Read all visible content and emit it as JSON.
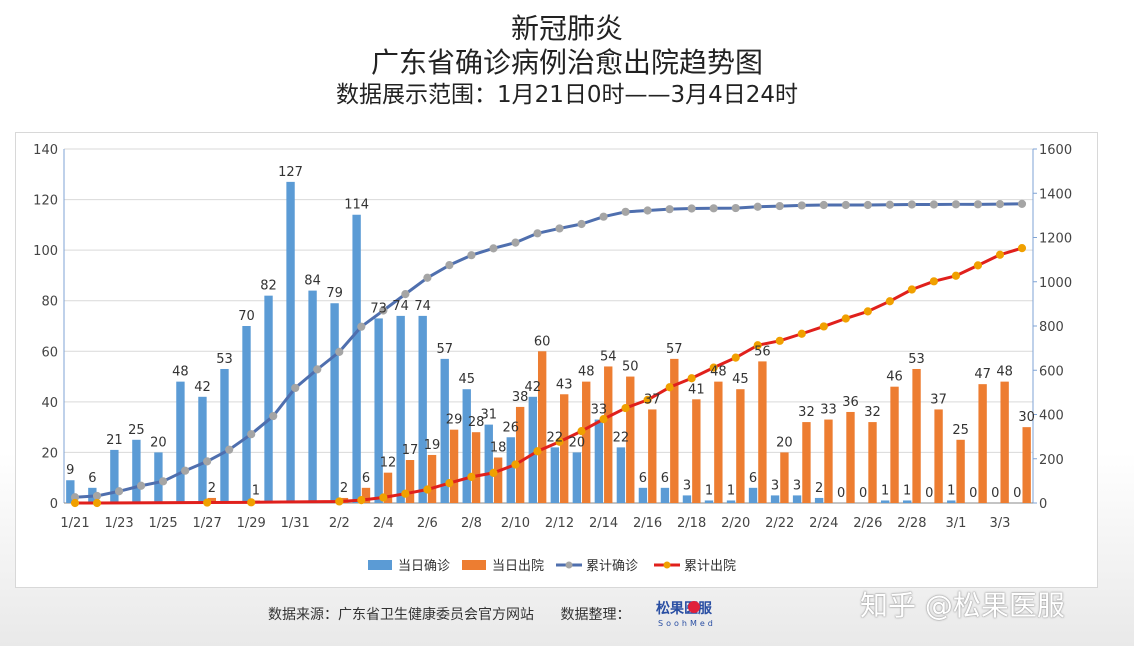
{
  "title": {
    "line1": "新冠肺炎",
    "line2": "广东省确诊病例治愈出院趋势图",
    "line3": "数据展示范围：1月21日0时——3月4日24时"
  },
  "colors": {
    "daily_confirmed": "#5b9bd5",
    "daily_discharged": "#ed7d31",
    "cumulative_confirmed": "#4f6fae",
    "cumulative_confirmed_marker": "#a5a5a5",
    "cumulative_discharged": "#e0201c",
    "cumulative_discharged_marker": "#f0a000",
    "grid": "#d9d9d9"
  },
  "chart_data": {
    "type": "bar",
    "categories": [
      "1/21",
      "1/22",
      "1/23",
      "1/24",
      "1/25",
      "1/26",
      "1/27",
      "1/28",
      "1/29",
      "1/30",
      "1/31",
      "2/1",
      "2/2",
      "2/3",
      "2/4",
      "2/5",
      "2/6",
      "2/7",
      "2/8",
      "2/9",
      "2/10",
      "2/11",
      "2/12",
      "2/13",
      "2/14",
      "2/15",
      "2/16",
      "2/17",
      "2/18",
      "2/19",
      "2/20",
      "2/21",
      "2/22",
      "2/23",
      "2/24",
      "2/25",
      "2/26",
      "2/27",
      "2/28",
      "2/29",
      "3/1",
      "3/2",
      "3/3",
      "3/4"
    ],
    "x_tick_labels": [
      "1/21",
      "1/23",
      "1/25",
      "1/27",
      "1/29",
      "1/31",
      "2/2",
      "2/4",
      "2/6",
      "2/8",
      "2/10",
      "2/12",
      "2/14",
      "2/16",
      "2/18",
      "2/20",
      "2/22",
      "2/24",
      "2/26",
      "2/28",
      "3/1",
      "3/3"
    ],
    "y_left": {
      "min": 0,
      "max": 140,
      "step": 20,
      "ticks": [
        "0",
        "20",
        "40",
        "60",
        "80",
        "100",
        "120",
        "140"
      ]
    },
    "y_right": {
      "min": 0,
      "max": 1600,
      "step": 200,
      "ticks": [
        "0",
        "200",
        "400",
        "600",
        "800",
        "1000",
        "1200",
        "1400",
        "1600"
      ]
    },
    "grid": true,
    "legend_position": "bottom",
    "series": [
      {
        "name": "当日确诊",
        "type": "bar",
        "axis": "left",
        "values": [
          9,
          6,
          21,
          25,
          20,
          48,
          42,
          53,
          70,
          82,
          127,
          84,
          79,
          114,
          73,
          74,
          74,
          57,
          45,
          31,
          26,
          42,
          22,
          20,
          33,
          22,
          6,
          6,
          3,
          1,
          1,
          6,
          3,
          3,
          2,
          0,
          0,
          1,
          1,
          0,
          1,
          0,
          0,
          0
        ],
        "labels": [
          "9",
          "6",
          "21",
          "25",
          "20",
          "48",
          "42",
          "53",
          "70",
          "82",
          "127",
          "84",
          "79",
          "114",
          "73",
          "74",
          "74",
          "57",
          "45",
          "31",
          "26",
          "42",
          "22",
          "20",
          "33",
          "22",
          "6",
          "6",
          "3",
          "1",
          "1",
          "6",
          "3",
          "3",
          "2",
          "0",
          "0",
          "1",
          "1",
          "0",
          "1",
          "0",
          "0",
          "0"
        ]
      },
      {
        "name": "当日出院",
        "type": "bar",
        "axis": "left",
        "values": [
          0,
          0,
          0,
          0,
          0,
          0,
          2,
          0,
          1,
          0,
          0,
          0,
          2,
          6,
          12,
          17,
          19,
          29,
          28,
          18,
          38,
          60,
          43,
          48,
          54,
          50,
          37,
          57,
          41,
          48,
          45,
          56,
          20,
          32,
          33,
          36,
          32,
          46,
          53,
          37,
          25,
          47,
          48,
          30
        ],
        "labels": [
          "",
          "",
          "",
          "",
          "",
          "",
          "2",
          "",
          "1",
          "",
          "",
          "",
          "2",
          "6",
          "12",
          "17",
          "19",
          "29",
          "28",
          "18",
          "38",
          "60",
          "43",
          "48",
          "54",
          "50",
          "37",
          "57",
          "41",
          "48",
          "45",
          "56",
          "20",
          "32",
          "33",
          "36",
          "32",
          "46",
          "53",
          "37",
          "25",
          "47",
          "48",
          "30"
        ]
      },
      {
        "name": "累计确诊",
        "type": "line",
        "axis": "right",
        "values": [
          26,
          32,
          53,
          78,
          98,
          146,
          188,
          241,
          311,
          393,
          520,
          604,
          683,
          797,
          870,
          944,
          1018,
          1075,
          1120,
          1151,
          1177,
          1219,
          1241,
          1261,
          1294,
          1316,
          1322,
          1328,
          1331,
          1332,
          1333,
          1339,
          1342,
          1345,
          1347,
          1347,
          1347,
          1348,
          1349,
          1349,
          1350,
          1350,
          1351,
          1352
        ]
      },
      {
        "name": "累计出院",
        "type": "line",
        "axis": "right",
        "values": [
          0,
          0,
          null,
          null,
          null,
          null,
          2,
          null,
          3,
          null,
          null,
          null,
          7,
          13,
          25,
          42,
          61,
          90,
          118,
          136,
          174,
          234,
          277,
          325,
          379,
          429,
          466,
          523,
          564,
          612,
          657,
          713,
          733,
          765,
          798,
          834,
          866,
          912,
          965,
          1002,
          1027,
          1074,
          1122,
          1152
        ]
      }
    ]
  },
  "footer": {
    "source": "数据来源：广东省卫生健康委员会官方网站",
    "compiler": "数据整理："
  },
  "logo": {
    "name": "松果医服",
    "subtitle": "SoohMed"
  },
  "watermark": "知乎 @松果医服"
}
